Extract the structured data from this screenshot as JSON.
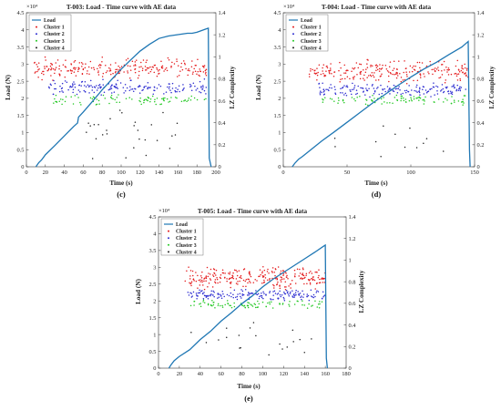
{
  "colors": {
    "load": "#1f77b4",
    "lz_axis": "#e8581d",
    "cluster1": "#e41a1c",
    "cluster2": "#2a2ad0",
    "cluster3": "#21c821",
    "cluster4": "#222222"
  },
  "chart_data": [
    {
      "type": "scatter",
      "title": "T-003: Load - Time curve with AE data",
      "caption": "(c)",
      "xlabel": "Time (s)",
      "ylabel": "Load (N)",
      "y2label": "LZ Complexity",
      "y_multiplier": "×10⁴",
      "xlim": [
        0,
        200
      ],
      "ylim": [
        0,
        4.5
      ],
      "y2lim": [
        0,
        1.4
      ],
      "x_ticks": [
        0,
        20,
        40,
        60,
        80,
        100,
        120,
        140,
        160,
        180,
        200
      ],
      "y_ticks": [
        0,
        0.5,
        1,
        1.5,
        2,
        2.5,
        3,
        3.5,
        4,
        4.5
      ],
      "y2_ticks": [
        0,
        0.2,
        0.4,
        0.6,
        0.8,
        1,
        1.2,
        1.4
      ],
      "legend_position": "top-left",
      "legend": [
        "Load",
        "Cluster 1",
        "Cluster 2",
        "Cluster 3",
        "Cluster 4"
      ],
      "load_curve": {
        "x": [
          10,
          13,
          16,
          20,
          30,
          40,
          50,
          54,
          55,
          60,
          70,
          80,
          90,
          100,
          110,
          120,
          130,
          140,
          150,
          160,
          165,
          170,
          175,
          180,
          185,
          190,
          192,
          193,
          195
        ],
        "y": [
          0,
          0.12,
          0.2,
          0.35,
          0.62,
          0.9,
          1.18,
          1.28,
          1.45,
          1.6,
          1.92,
          2.25,
          2.55,
          2.85,
          3.12,
          3.38,
          3.58,
          3.75,
          3.82,
          3.86,
          3.88,
          3.9,
          3.9,
          3.93,
          3.98,
          4.03,
          4.05,
          0.25,
          0
        ]
      },
      "clusters": [
        {
          "name": "Cluster 1",
          "x_range": [
            8,
            190
          ],
          "lz_range": [
            0.78,
            1.0
          ],
          "count": 240
        },
        {
          "name": "Cluster 2",
          "x_range": [
            22,
            190
          ],
          "lz_range": [
            0.65,
            0.8
          ],
          "count": 170
        },
        {
          "name": "Cluster 3",
          "x_range": [
            28,
            190
          ],
          "lz_range": [
            0.55,
            0.67
          ],
          "count": 90
        },
        {
          "name": "Cluster 4",
          "x_range": [
            60,
            180
          ],
          "lz_range": [
            0.05,
            0.55
          ],
          "count": 28
        }
      ]
    },
    {
      "type": "scatter",
      "title": "T-004: Load - Time curve with AE data",
      "caption": "(d)",
      "xlabel": "Time (s)",
      "ylabel": "Load (N)",
      "y2label": "LZ Complexity",
      "y_multiplier": "×10⁴",
      "xlim": [
        0,
        150
      ],
      "ylim": [
        0,
        4.5
      ],
      "y2lim": [
        0,
        1.4
      ],
      "x_ticks": [
        0,
        50,
        100,
        150
      ],
      "y_ticks": [
        0,
        0.5,
        1,
        1.5,
        2,
        2.5,
        3,
        3.5,
        4,
        4.5
      ],
      "y2_ticks": [
        0,
        0.2,
        0.4,
        0.6,
        0.8,
        1,
        1.2,
        1.4
      ],
      "legend_position": "top-left",
      "legend": [
        "Load",
        "Cluster 1",
        "Cluster 2",
        "Cluster 3",
        "Cluster 4"
      ],
      "load_curve": {
        "x": [
          7,
          9,
          12,
          15,
          20,
          30,
          40,
          50,
          60,
          70,
          80,
          90,
          100,
          110,
          120,
          130,
          140,
          145,
          146,
          146.5
        ],
        "y": [
          0,
          0.1,
          0.22,
          0.3,
          0.45,
          0.75,
          1.02,
          1.3,
          1.58,
          1.86,
          2.12,
          2.38,
          2.62,
          2.85,
          3.05,
          3.28,
          3.5,
          3.66,
          0.5,
          0
        ]
      },
      "clusters": [
        {
          "name": "Cluster 1",
          "x_range": [
            20,
            145
          ],
          "lz_range": [
            0.75,
            0.98
          ],
          "count": 240
        },
        {
          "name": "Cluster 2",
          "x_range": [
            25,
            145
          ],
          "lz_range": [
            0.63,
            0.77
          ],
          "count": 170
        },
        {
          "name": "Cluster 3",
          "x_range": [
            30,
            145
          ],
          "lz_range": [
            0.55,
            0.66
          ],
          "count": 90
        },
        {
          "name": "Cluster 4",
          "x_range": [
            40,
            145
          ],
          "lz_range": [
            0.05,
            0.45
          ],
          "count": 12
        }
      ]
    },
    {
      "type": "scatter",
      "title": "T-005: Load - Time curve with AE data",
      "caption": "(e)",
      "xlabel": "Time (s)",
      "ylabel": "Load (N)",
      "y2label": "LZ Complexity",
      "y_multiplier": "×10⁴",
      "xlim": [
        0,
        180
      ],
      "ylim": [
        0,
        4.5
      ],
      "y2lim": [
        0,
        1.4
      ],
      "x_ticks": [
        0,
        20,
        40,
        60,
        80,
        100,
        120,
        140,
        160,
        180
      ],
      "y_ticks": [
        0,
        0.5,
        1,
        1.5,
        2,
        2.5,
        3,
        3.5,
        4,
        4.5
      ],
      "y2_ticks": [
        0,
        0.2,
        0.4,
        0.6,
        0.8,
        1,
        1.2,
        1.4
      ],
      "legend_position": "top-left",
      "legend": [
        "Load",
        "Cluster 1",
        "Cluster 2",
        "Cluster 3",
        "Cluster 4"
      ],
      "load_curve": {
        "x": [
          10,
          12,
          15,
          20,
          30,
          40,
          50,
          60,
          70,
          80,
          90,
          100,
          110,
          120,
          130,
          140,
          150,
          158,
          160,
          161,
          162
        ],
        "y": [
          0,
          0.1,
          0.22,
          0.35,
          0.55,
          0.85,
          1.1,
          1.4,
          1.65,
          1.92,
          2.15,
          2.42,
          2.65,
          2.85,
          3.05,
          3.25,
          3.45,
          3.62,
          3.66,
          0.3,
          0
        ]
      },
      "clusters": [
        {
          "name": "Cluster 1",
          "x_range": [
            25,
            160
          ],
          "lz_range": [
            0.72,
            0.95
          ],
          "count": 260
        },
        {
          "name": "Cluster 2",
          "x_range": [
            28,
            160
          ],
          "lz_range": [
            0.62,
            0.74
          ],
          "count": 170
        },
        {
          "name": "Cluster 3",
          "x_range": [
            30,
            160
          ],
          "lz_range": [
            0.54,
            0.64
          ],
          "count": 90
        },
        {
          "name": "Cluster 4",
          "x_range": [
            30,
            155
          ],
          "lz_range": [
            0.1,
            0.5
          ],
          "count": 20
        }
      ]
    }
  ]
}
